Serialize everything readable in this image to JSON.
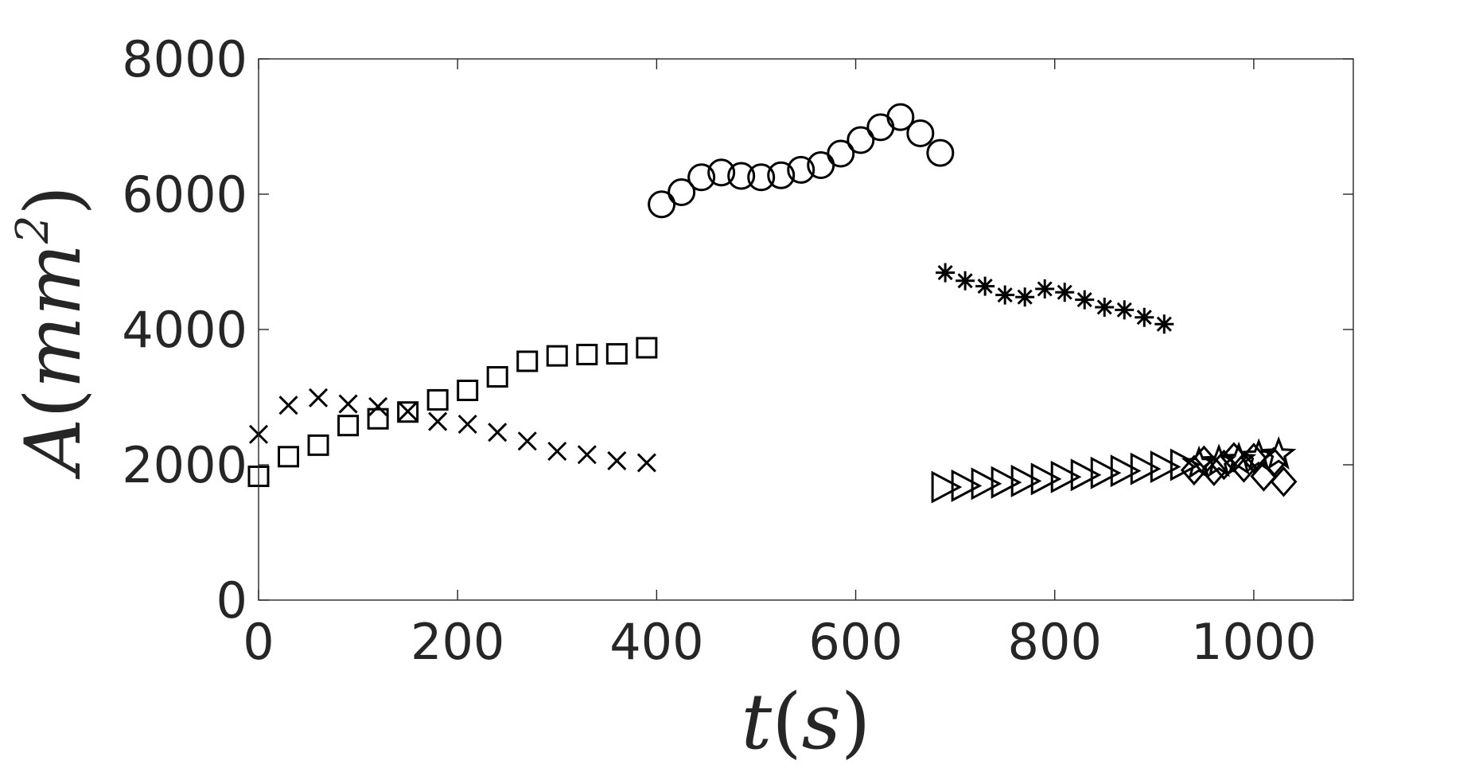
{
  "chart_data": {
    "type": "scatter",
    "title": "",
    "xlabel": "t(s)",
    "ylabel": "A(mm^2)",
    "xlabel_parts": {
      "var": "t",
      "open": "(",
      "unit": "s",
      "close": ")"
    },
    "ylabel_parts": {
      "var": "A",
      "open": "(",
      "unit": "mm",
      "sup": "2",
      "close": ")"
    },
    "xlim": [
      0,
      1100
    ],
    "ylim": [
      0,
      8000
    ],
    "xticks": [
      0,
      200,
      400,
      600,
      800,
      1000
    ],
    "yticks": [
      0,
      2000,
      4000,
      6000,
      8000
    ],
    "xtick_labels": [
      "0",
      "200",
      "400",
      "600",
      "800",
      "1000"
    ],
    "ytick_labels": [
      "0",
      "2000",
      "4000",
      "6000",
      "8000"
    ],
    "grid": false,
    "legend": "none",
    "marker_color": "#000000",
    "series": [
      {
        "marker": "cross",
        "x": [
          0,
          30,
          60,
          90,
          120,
          150,
          180,
          210,
          240,
          270,
          300,
          330,
          360,
          390
        ],
        "y": [
          2450,
          2880,
          2990,
          2900,
          2860,
          2790,
          2640,
          2600,
          2480,
          2350,
          2200,
          2150,
          2060,
          2030
        ]
      },
      {
        "marker": "square",
        "x": [
          0,
          30,
          60,
          90,
          120,
          150,
          180,
          210,
          240,
          270,
          300,
          330,
          360,
          390
        ],
        "y": [
          1830,
          2120,
          2290,
          2580,
          2680,
          2780,
          2960,
          3100,
          3300,
          3530,
          3610,
          3630,
          3640,
          3730
        ]
      },
      {
        "marker": "circle",
        "x": [
          405,
          425,
          445,
          465,
          485,
          505,
          525,
          545,
          565,
          585,
          605,
          625,
          645,
          665,
          685
        ],
        "y": [
          5850,
          6030,
          6250,
          6320,
          6270,
          6250,
          6280,
          6360,
          6430,
          6600,
          6800,
          6990,
          7140,
          6900,
          6610
        ]
      },
      {
        "marker": "asterisk",
        "x": [
          690,
          710,
          730,
          750,
          770,
          790,
          810,
          830,
          850,
          870,
          890,
          910
        ],
        "y": [
          4840,
          4720,
          4640,
          4510,
          4480,
          4600,
          4550,
          4440,
          4330,
          4290,
          4180,
          4080
        ]
      },
      {
        "marker": "triangle-right",
        "x": [
          690,
          710,
          730,
          750,
          770,
          790,
          810,
          830,
          850,
          870,
          890,
          910,
          930
        ],
        "y": [
          1670,
          1690,
          1720,
          1740,
          1760,
          1790,
          1820,
          1850,
          1880,
          1910,
          1940,
          1970,
          2000
        ]
      },
      {
        "marker": "diamond",
        "x": [
          940,
          950,
          960,
          970,
          980,
          990,
          1000,
          1010,
          1020,
          1030
        ],
        "y": [
          1920,
          2060,
          1910,
          2000,
          2110,
          1960,
          2100,
          1830,
          2040,
          1750
        ]
      },
      {
        "marker": "pentagram",
        "x": [
          945,
          965,
          985,
          1005,
          1025
        ],
        "y": [
          2010,
          2040,
          2070,
          2120,
          2150
        ]
      }
    ]
  }
}
